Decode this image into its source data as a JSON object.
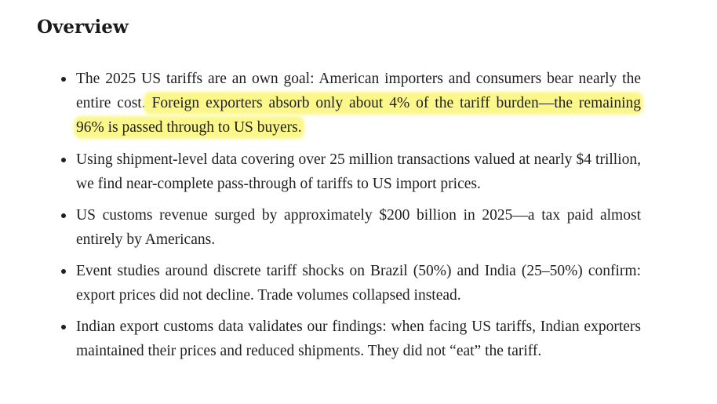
{
  "section": {
    "title": "Overview"
  },
  "bullets": [
    {
      "text": "The 2025 US tariffs are an own goal: American importers and consumers bear nearly the entire cost.",
      "highlight": " Foreign exporters absorb only about 4% of the tariff burden—the remaining 96% is passed through to US buyers."
    },
    {
      "text": "Using shipment-level data covering over 25 million transactions valued at nearly $4 trillion, we find near-complete pass-through of tariffs to US import prices."
    },
    {
      "text": "US customs revenue surged by approximately $200 billion in 2025—a tax paid almost entirely by Americans."
    },
    {
      "text": "Event studies around discrete tariff shocks on Brazil (50%) and India (25–50%) confirm: export prices did not decline. Trade volumes collapsed instead."
    },
    {
      "text": "Indian export customs data validates our findings: when facing US tariffs, Indian exporters maintained their prices and reduced shipments. They did not “eat” the tariff."
    }
  ],
  "colors": {
    "highlight": "#fbf78a",
    "text": "#1f1f1f"
  }
}
